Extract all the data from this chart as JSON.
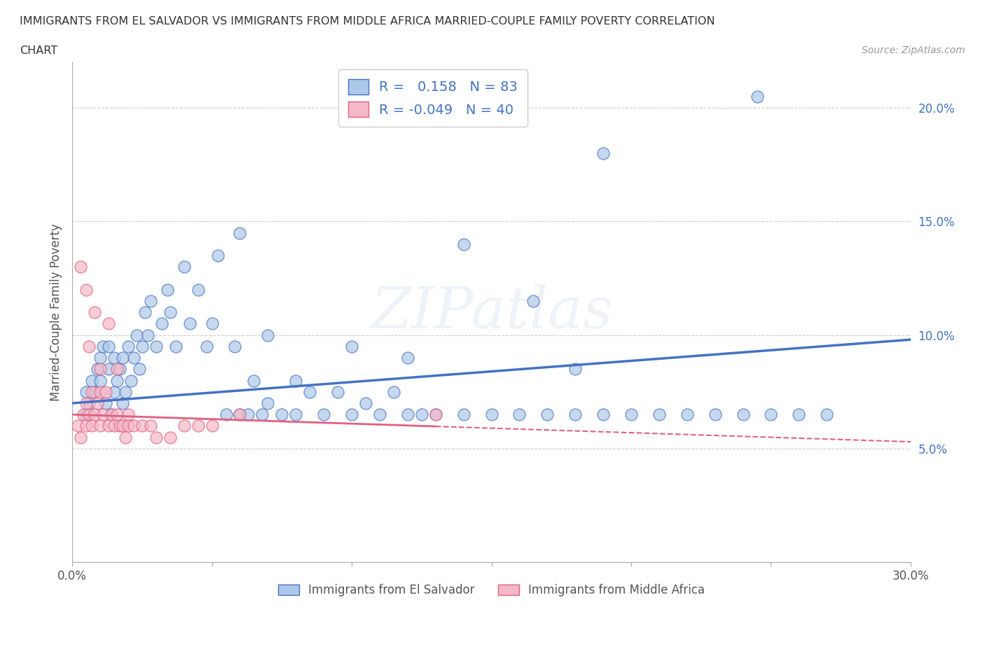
{
  "title_line1": "IMMIGRANTS FROM EL SALVADOR VS IMMIGRANTS FROM MIDDLE AFRICA MARRIED-COUPLE FAMILY POVERTY CORRELATION",
  "title_line2": "CHART",
  "source": "Source: ZipAtlas.com",
  "ylabel": "Married-Couple Family Poverty",
  "xlim": [
    0.0,
    0.3
  ],
  "ylim": [
    0.0,
    0.22
  ],
  "yticks": [
    0.05,
    0.1,
    0.15,
    0.2
  ],
  "ytick_labels": [
    "5.0%",
    "10.0%",
    "15.0%",
    "20.0%"
  ],
  "xticks": [
    0.0,
    0.05,
    0.1,
    0.15,
    0.2,
    0.25,
    0.3
  ],
  "xtick_labels": [
    "0.0%",
    "",
    "",
    "",
    "",
    "",
    "30.0%"
  ],
  "color_blue": "#adc8e8",
  "color_pink": "#f5b8c8",
  "line_blue": "#4472c4",
  "line_pink": "#e06080",
  "r_blue": 0.158,
  "n_blue": 83,
  "r_pink": -0.049,
  "n_pink": 40,
  "legend_label_blue": "Immigrants from El Salvador",
  "legend_label_pink": "Immigrants from Middle Africa",
  "watermark": "ZIPatlas",
  "blue_line_start_y": 0.07,
  "blue_line_end_y": 0.098,
  "pink_line_start_y": 0.065,
  "pink_line_end_y": 0.053,
  "blue_scatter_x": [
    0.005,
    0.005,
    0.006,
    0.007,
    0.008,
    0.009,
    0.01,
    0.01,
    0.011,
    0.012,
    0.013,
    0.013,
    0.014,
    0.015,
    0.015,
    0.016,
    0.017,
    0.018,
    0.018,
    0.019,
    0.02,
    0.021,
    0.022,
    0.023,
    0.024,
    0.025,
    0.026,
    0.027,
    0.028,
    0.03,
    0.032,
    0.034,
    0.035,
    0.037,
    0.04,
    0.042,
    0.045,
    0.048,
    0.05,
    0.052,
    0.055,
    0.058,
    0.06,
    0.063,
    0.065,
    0.068,
    0.07,
    0.075,
    0.08,
    0.085,
    0.09,
    0.095,
    0.1,
    0.105,
    0.11,
    0.115,
    0.12,
    0.125,
    0.13,
    0.14,
    0.15,
    0.16,
    0.17,
    0.18,
    0.19,
    0.2,
    0.21,
    0.22,
    0.23,
    0.24,
    0.25,
    0.26,
    0.27,
    0.165,
    0.18,
    0.06,
    0.07,
    0.08,
    0.1,
    0.12,
    0.14,
    0.19,
    0.245
  ],
  "blue_scatter_y": [
    0.065,
    0.075,
    0.07,
    0.08,
    0.075,
    0.085,
    0.08,
    0.09,
    0.095,
    0.07,
    0.085,
    0.095,
    0.065,
    0.075,
    0.09,
    0.08,
    0.085,
    0.07,
    0.09,
    0.075,
    0.095,
    0.08,
    0.09,
    0.1,
    0.085,
    0.095,
    0.11,
    0.1,
    0.115,
    0.095,
    0.105,
    0.12,
    0.11,
    0.095,
    0.13,
    0.105,
    0.12,
    0.095,
    0.105,
    0.135,
    0.065,
    0.095,
    0.065,
    0.065,
    0.08,
    0.065,
    0.07,
    0.065,
    0.08,
    0.075,
    0.065,
    0.075,
    0.065,
    0.07,
    0.065,
    0.075,
    0.065,
    0.065,
    0.065,
    0.065,
    0.065,
    0.065,
    0.065,
    0.065,
    0.065,
    0.065,
    0.065,
    0.065,
    0.065,
    0.065,
    0.065,
    0.065,
    0.065,
    0.115,
    0.085,
    0.145,
    0.1,
    0.065,
    0.095,
    0.09,
    0.14,
    0.18,
    0.205
  ],
  "pink_scatter_x": [
    0.002,
    0.003,
    0.004,
    0.005,
    0.005,
    0.006,
    0.007,
    0.007,
    0.008,
    0.009,
    0.01,
    0.01,
    0.011,
    0.012,
    0.013,
    0.014,
    0.015,
    0.016,
    0.017,
    0.018,
    0.019,
    0.02,
    0.022,
    0.025,
    0.028,
    0.03,
    0.035,
    0.04,
    0.045,
    0.05,
    0.003,
    0.005,
    0.006,
    0.008,
    0.01,
    0.013,
    0.016,
    0.02,
    0.06,
    0.13
  ],
  "pink_scatter_y": [
    0.06,
    0.055,
    0.065,
    0.06,
    0.07,
    0.065,
    0.06,
    0.075,
    0.065,
    0.07,
    0.06,
    0.075,
    0.065,
    0.075,
    0.06,
    0.065,
    0.06,
    0.065,
    0.06,
    0.06,
    0.055,
    0.06,
    0.06,
    0.06,
    0.06,
    0.055,
    0.055,
    0.06,
    0.06,
    0.06,
    0.13,
    0.12,
    0.095,
    0.11,
    0.085,
    0.105,
    0.085,
    0.065,
    0.065,
    0.065
  ]
}
